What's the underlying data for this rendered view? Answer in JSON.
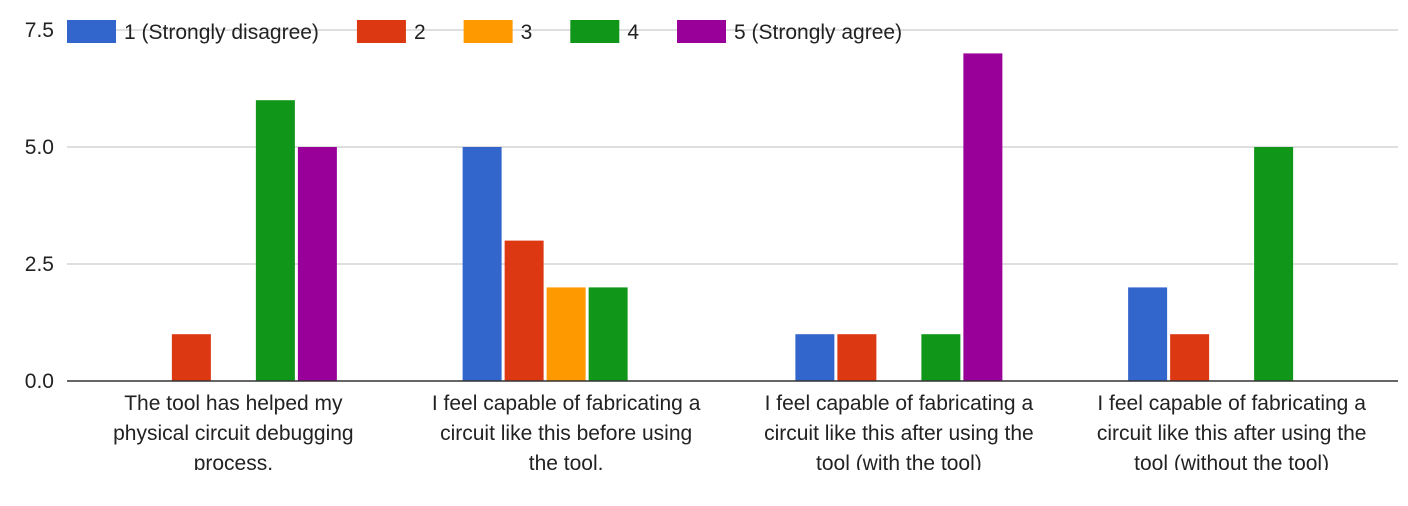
{
  "chart_data": {
    "type": "bar",
    "categories": [
      [
        "The tool has helped my",
        "physical circuit debugging",
        "process."
      ],
      [
        "I feel capable of fabricating a",
        "circuit like this before using",
        "the tool."
      ],
      [
        "I feel capable of fabricating a",
        "circuit like this after using the",
        "tool (with the tool)"
      ],
      [
        "I feel capable of fabricating a",
        "circuit like this after using the",
        "tool (without the tool)"
      ]
    ],
    "series": [
      {
        "name": "1 (Strongly disagree)",
        "color": "#3366cc",
        "values": [
          0,
          5,
          1,
          2
        ]
      },
      {
        "name": "2",
        "color": "#dc3912",
        "values": [
          1,
          3,
          1,
          1
        ]
      },
      {
        "name": "3",
        "color": "#ff9900",
        "values": [
          0,
          2,
          0,
          0
        ]
      },
      {
        "name": "4",
        "color": "#109618",
        "values": [
          6,
          2,
          1,
          5
        ]
      },
      {
        "name": "5 (Strongly agree)",
        "color": "#990099",
        "values": [
          5,
          0,
          7,
          0
        ]
      }
    ],
    "ylim": [
      0,
      7.5
    ],
    "yticks": [
      "0.0",
      "2.5",
      "5.0",
      "7.5"
    ],
    "grid": true,
    "legend_position": "top"
  }
}
